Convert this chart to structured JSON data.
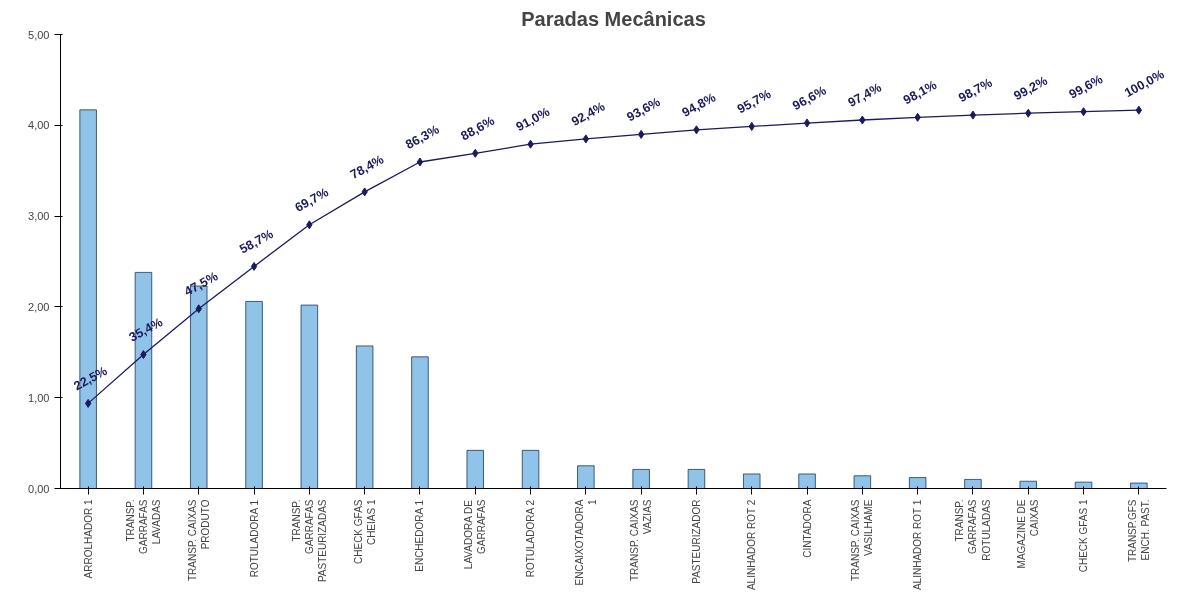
{
  "chart_data": {
    "type": "bar",
    "title": "Paradas Mecânicas",
    "categories": [
      "ARROLHADOR 1",
      "TRANSP.\nGARRAFAS\nLAVADAS",
      "TRANSP. CAIXAS\nPRODUTO",
      "ROTULADORA 1",
      "TRANSP.\nGARRAFAS\nPASTEURIZADAS",
      "CHECK GFAS\nCHEIAS 1",
      "ENCHEDORA 1",
      "LAVADORA DE\nGARRAFAS",
      "ROTULADORA 2",
      "ENCAIXOTADORA\n1",
      "TRANSP. CAIXAS\nVAZIAS",
      "PASTEURIZADOR",
      "ALINHADOR ROT 2",
      "CINTADORA",
      "TRANSP. CAIXAS\nVASILHAME",
      "ALINHADOR ROT 1",
      "TRANSP.\nGARRAFAS\nROTULADAS",
      "MAGAZINE DE\nCAIXAS",
      "CHECK GFAS 1",
      "TRANSP.GFS\nENCH. PAST."
    ],
    "series": [
      {
        "color": "#8fc3e8",
        "values": [
          4.17,
          2.38,
          2.23,
          2.06,
          2.02,
          1.57,
          1.45,
          0.42,
          0.42,
          0.25,
          0.21,
          0.21,
          0.16,
          0.16,
          0.14,
          0.12,
          0.1,
          0.08,
          0.07,
          0.06
        ]
      },
      {
        "type": "line",
        "color": "#1a1a5e",
        "axis": "y2",
        "marker": "diamond",
        "line_style": "solid",
        "values": [
          22.5,
          35.4,
          47.5,
          58.7,
          69.7,
          78.4,
          86.3,
          88.6,
          91.0,
          92.4,
          93.6,
          94.8,
          95.7,
          96.6,
          97.4,
          98.1,
          98.7,
          99.2,
          99.6,
          100.0
        ],
        "value_labels": [
          "22,5%",
          "35,4%",
          "47,5%",
          "58,7%",
          "69,7%",
          "78,4%",
          "86,3%",
          "88,6%",
          "91,0%",
          "92,4%",
          "93,6%",
          "94,8%",
          "95,7%",
          "96,6%",
          "97,4%",
          "98,1%",
          "98,7%",
          "99,2%",
          "99,6%",
          "100,0%"
        ]
      }
    ],
    "ylim": [
      0,
      5
    ],
    "yticks": [
      {
        "value": 0,
        "label": "0,00"
      },
      {
        "value": 1,
        "label": "1,00"
      },
      {
        "value": 2,
        "label": "2,00"
      },
      {
        "value": 3,
        "label": "3,00"
      },
      {
        "value": 4,
        "label": "4,00"
      },
      {
        "value": 5,
        "label": "5,00"
      }
    ],
    "y2lim": [
      0,
      120
    ],
    "grid": false
  }
}
